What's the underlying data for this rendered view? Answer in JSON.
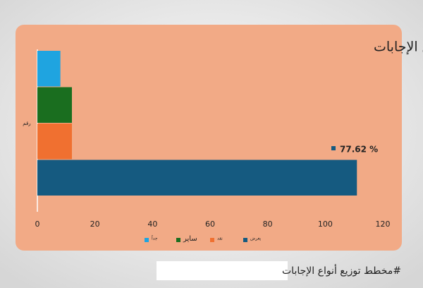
{
  "chart_data": {
    "type": "hbar",
    "title": "توزيع نوع الإجابات",
    "categories": [
      "رقم"
    ],
    "series": [
      {
        "name": "جداً",
        "color": "#1fa4e0",
        "values": [
          8
        ]
      },
      {
        "name": "ساير",
        "color": "#1a6e1f",
        "values": [
          12
        ]
      },
      {
        "name": "نقد",
        "color": "#f07030",
        "values": [
          12
        ]
      },
      {
        "name": "يعرض",
        "color": "#155a80",
        "values": [
          111
        ]
      }
    ],
    "annotation": "77.62 %",
    "xlim": [
      0,
      120
    ],
    "xticks": [
      0,
      20,
      40,
      60,
      80,
      100,
      120
    ],
    "grid": false,
    "background": "#f2aa86"
  },
  "caption": "#مخطط توزيع أنواع الإجابات"
}
